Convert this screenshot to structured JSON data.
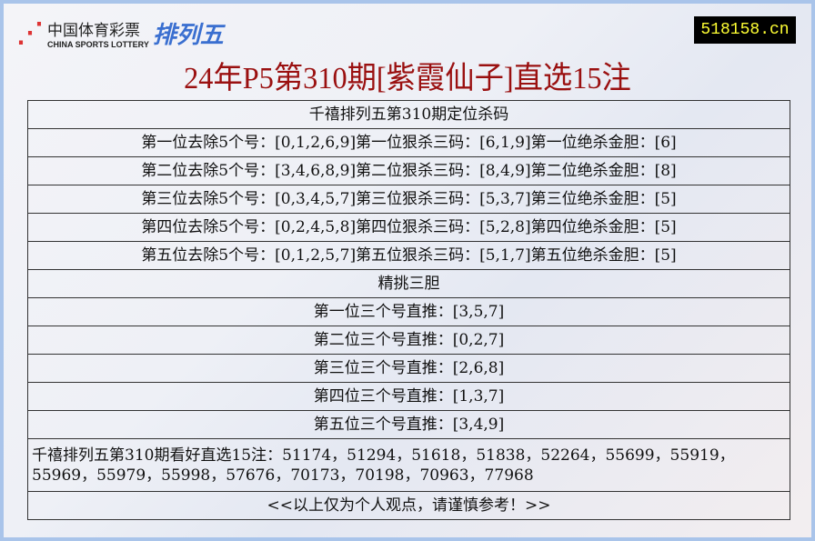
{
  "logo": {
    "cn": "中国体育彩票",
    "en": "CHINA SPORTS LOTTERY",
    "game": "排列五"
  },
  "site": "518158.cn",
  "title": "24年P5第310期[紫霞仙子]直选15注",
  "section1": "千禧排列五第310期定位杀码",
  "kill_rows": [
    "第一位去除5个号：[0,1,2,6,9]第一位狠杀三码：[6,1,9]第一位绝杀金胆：[6]",
    "第二位去除5个号：[3,4,6,8,9]第二位狠杀三码：[8,4,9]第二位绝杀金胆：[8]",
    "第三位去除5个号：[0,3,4,5,7]第三位狠杀三码：[5,3,7]第三位绝杀金胆：[5]",
    "第四位去除5个号：[0,2,4,5,8]第四位狠杀三码：[5,2,8]第四位绝杀金胆：[5]",
    "第五位去除5个号：[0,1,2,5,7]第五位狠杀三码：[5,1,7]第五位绝杀金胆：[5]"
  ],
  "section2": "精挑三胆",
  "three_rows": [
    "第一位三个号直推：[3,5,7]",
    "第二位三个号直推：[0,2,7]",
    "第三位三个号直推：[2,6,8]",
    "第四位三个号直推：[1,3,7]",
    "第五位三个号直推：[3,4,9]"
  ],
  "picks": "千禧排列五第310期看好直选15注：51174，51294，51618，51838，52264，55699，55919，55969，55979，55998，57676，70173，70198，70963，77968",
  "disclaimer": "<<以上仅为个人观点，请谨慎参考！>>"
}
